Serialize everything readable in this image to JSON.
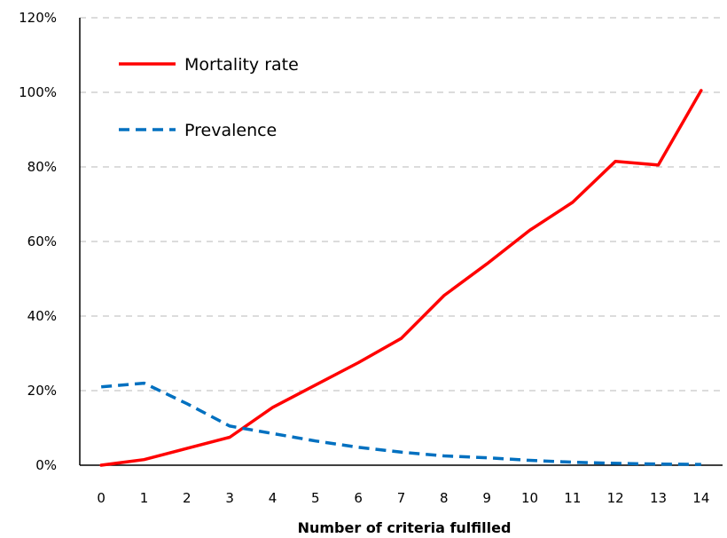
{
  "chart_data": {
    "type": "line",
    "title": "",
    "xlabel": "Number of criteria fulfilled",
    "ylabel": "",
    "x": [
      0,
      1,
      2,
      3,
      4,
      5,
      6,
      7,
      8,
      9,
      10,
      11,
      12,
      13,
      14
    ],
    "xlim": [
      -0.5,
      14.5
    ],
    "ylim": [
      0,
      120
    ],
    "y_ticks": [
      0,
      20,
      40,
      60,
      80,
      100,
      120
    ],
    "y_tick_labels": [
      "0%",
      "20%",
      "40%",
      "60%",
      "80%",
      "100%",
      "120%"
    ],
    "grid": true,
    "legend": "top-left",
    "series": [
      {
        "name": "Mortality rate",
        "color": "#ff0000",
        "style": "solid",
        "values": [
          0,
          1.5,
          4.5,
          7.5,
          15.5,
          21.5,
          27.5,
          34,
          45.5,
          54,
          63,
          70.5,
          81.5,
          80.5,
          100.5
        ]
      },
      {
        "name": "Prevalence",
        "color": "#0070c0",
        "style": "dashed",
        "values": [
          21,
          22,
          16.5,
          10.5,
          8.5,
          6.5,
          4.8,
          3.5,
          2.5,
          2,
          1.3,
          0.8,
          0.5,
          0.3,
          0.2
        ]
      }
    ]
  }
}
